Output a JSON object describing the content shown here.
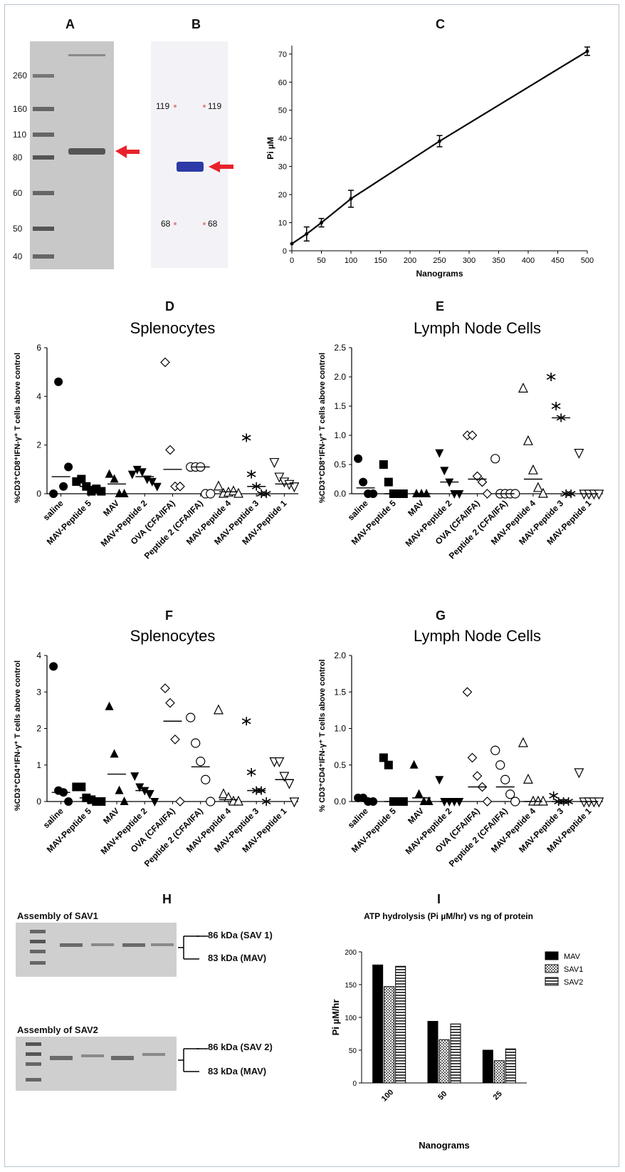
{
  "panels": {
    "A": {
      "label": "A",
      "markers": [
        "260",
        "160",
        "110",
        "80",
        "60",
        "50",
        "40"
      ]
    },
    "B": {
      "label": "B",
      "markers_left": [
        "119",
        "68"
      ],
      "markers_right": [
        "119",
        "68"
      ]
    },
    "C": {
      "label": "C"
    },
    "D": {
      "label": "D"
    },
    "E": {
      "label": "E"
    },
    "F": {
      "label": "F"
    },
    "G": {
      "label": "G"
    },
    "H": {
      "label": "H",
      "sav1_title": "Assembly of SAV1",
      "sav2_title": "Assembly of SAV2",
      "sav1_upper": "86 kDa (SAV 1)",
      "sav1_lower": "83 kDa (MAV)",
      "sav2_upper": "86 kDa (SAV 2)",
      "sav2_lower": "83 kDa (MAV)"
    },
    "I": {
      "label": "I"
    }
  },
  "chart_data": [
    {
      "id": "C",
      "type": "line",
      "xlabel": "Nanograms",
      "ylabel": "Pi µM",
      "xlim": [
        0,
        500
      ],
      "ylim": [
        0,
        73
      ],
      "xticks": [
        0,
        50,
        100,
        150,
        200,
        250,
        300,
        350,
        400,
        450,
        500
      ],
      "yticks": [
        0,
        10,
        20,
        30,
        40,
        50,
        60,
        70
      ],
      "x": [
        0,
        25,
        50,
        100,
        250,
        500
      ],
      "y": [
        2.5,
        6,
        10,
        18.5,
        39,
        71
      ],
      "err": [
        0,
        2.5,
        1.5,
        3,
        2,
        1.5
      ]
    },
    {
      "id": "D",
      "type": "scatter",
      "title": "Splenocytes",
      "ylabel": "%CD3⁺CD8⁺IFN-γ⁺ T cells above control",
      "ylim": [
        0,
        6
      ],
      "yticks": [
        "0",
        "2",
        "4",
        "6"
      ],
      "categories": [
        "saline",
        "MAV-Peptide 5",
        "MAV",
        "MAV+Peptide 2",
        "OVA (CFA/IFA)",
        "Peptide 2 (CFA/IFA)",
        "MAV-Peptide 4",
        "MAV-Peptide 3",
        "MAV-Peptide 1"
      ],
      "markers": [
        "circle",
        "square",
        "triangle",
        "triangle-down",
        "diamond-open",
        "circle-open",
        "triangle-open",
        "star",
        "triangle-down-open"
      ],
      "points": [
        [
          0,
          4.6,
          0.3,
          1.1
        ],
        [
          0.5,
          0.6,
          0.3,
          0.1,
          0.2,
          0.1
        ],
        [
          0.8,
          0.6,
          0,
          0
        ],
        [
          0.8,
          1.0,
          0.9,
          0.6,
          0.5,
          0.3
        ],
        [
          5.4,
          1.8,
          0.3,
          0.3
        ],
        [
          1.1,
          1.1,
          1.1,
          0,
          0
        ],
        [
          0.3,
          0,
          0.05,
          0.1,
          0
        ],
        [
          2.3,
          0.8,
          0.3,
          0,
          0
        ],
        [
          1.3,
          0.7,
          0.5,
          0.4,
          0.3
        ]
      ],
      "means": [
        0.7,
        0.3,
        0.4,
        0.7,
        1.0,
        1.1,
        0.08,
        0.3,
        0.4
      ]
    },
    {
      "id": "E",
      "type": "scatter",
      "title": "Lymph Node Cells",
      "ylabel": "%CD3⁺CD8⁺IFN-γ⁺ T cells above control",
      "ylim": [
        0,
        2.5
      ],
      "yticks": [
        "0.0",
        "0.5",
        "1.0",
        "1.5",
        "2.0",
        "2.5"
      ],
      "categories": [
        "saline",
        "MAV-Peptide 5",
        "MAV",
        "MAV+Peptide 2",
        "OVA (CFA/IFA)",
        "Peptide 2 (CFA/IFA)",
        "MAV-Peptide 4",
        "MAV-Peptide 3",
        "MAV-Peptide 1"
      ],
      "markers": [
        "circle",
        "square",
        "triangle",
        "triangle-down",
        "diamond-open",
        "circle-open",
        "triangle-open",
        "star",
        "triangle-down-open"
      ],
      "points": [
        [
          0.6,
          0.2,
          0,
          0
        ],
        [
          0.5,
          0.2,
          0,
          0,
          0
        ],
        [
          0,
          0,
          0
        ],
        [
          0.7,
          0.4,
          0.2,
          0,
          0
        ],
        [
          1.0,
          1.0,
          0.3,
          0.2,
          0
        ],
        [
          0.6,
          0,
          0,
          0,
          0
        ],
        [
          1.8,
          0.9,
          0.4,
          0.1,
          0
        ],
        [
          2.0,
          1.5,
          1.3,
          0,
          0
        ],
        [
          0.7,
          0,
          0,
          0,
          0
        ]
      ],
      "means": [
        0.1,
        0,
        0,
        0.2,
        0.25,
        0,
        0.25,
        1.3,
        0
      ]
    },
    {
      "id": "F",
      "type": "scatter",
      "title": "Splenocytes",
      "ylabel": "%CD3⁺CD4⁺IFN-γ⁺ T cells above control",
      "ylim": [
        0,
        4
      ],
      "yticks": [
        "0",
        "1",
        "2",
        "3",
        "4"
      ],
      "categories": [
        "saline",
        "MAV-Peptide 5",
        "MAV",
        "MAV+Peptide 2",
        "OVA (CFA/IFA)",
        "Peptide 2 (CFA/IFA)",
        "MAV-Peptide 4",
        "MAV-Peptide 3",
        "MAV-Peptide 1"
      ],
      "markers": [
        "circle",
        "square",
        "triangle",
        "triangle-down",
        "diamond-open",
        "circle-open",
        "triangle-open",
        "star",
        "triangle-down-open"
      ],
      "points": [
        [
          3.7,
          0.3,
          0.25,
          0
        ],
        [
          0.4,
          0.4,
          0.1,
          0.05,
          0,
          0
        ],
        [
          2.6,
          1.3,
          0.3,
          0
        ],
        [
          0.7,
          0.4,
          0.3,
          0.2,
          0
        ],
        [
          3.1,
          2.7,
          1.7,
          0
        ],
        [
          2.3,
          1.6,
          1.1,
          0.6,
          0
        ],
        [
          2.5,
          0.2,
          0.1,
          0,
          0
        ],
        [
          2.2,
          0.8,
          0.3,
          0.3,
          0
        ],
        [
          1.1,
          1.1,
          0.7,
          0.5,
          0
        ]
      ],
      "means": [
        0.25,
        0.1,
        0.75,
        0.3,
        2.2,
        0.95,
        0.05,
        0.3,
        0.6
      ]
    },
    {
      "id": "G",
      "type": "scatter",
      "title": "Lymph Node Cells",
      "ylabel": "% CD3⁺CD4⁺IFN-γ⁺ T cells above control",
      "ylim": [
        0,
        2.0
      ],
      "yticks": [
        "0.0",
        "0.5",
        "1.0",
        "1.5",
        "2.0"
      ],
      "categories": [
        "saline",
        "MAV-Peptide 5",
        "MAV",
        "MAV+Peptide 2",
        "OVA (CFA/IFA)",
        "Peptide 2 (CFA/IFA)",
        "MAV-Peptide 4",
        "MAV-Peptide 3",
        "MAV-Peptide 1"
      ],
      "markers": [
        "circle",
        "square",
        "triangle",
        "triangle-down",
        "diamond-open",
        "circle-open",
        "triangle-open",
        "star",
        "triangle-down-open"
      ],
      "points": [
        [
          0.05,
          0.05,
          0,
          0
        ],
        [
          0.6,
          0.5,
          0,
          0,
          0
        ],
        [
          0.5,
          0.1,
          0,
          0
        ],
        [
          0.3,
          0,
          0,
          0,
          0
        ],
        [
          1.5,
          0.6,
          0.35,
          0.2,
          0
        ],
        [
          0.7,
          0.5,
          0.3,
          0.1,
          0
        ],
        [
          0.8,
          0.3,
          0,
          0,
          0
        ],
        [
          0.08,
          0,
          0,
          0
        ],
        [
          0.4,
          0,
          0,
          0,
          0
        ]
      ],
      "means": [
        0.02,
        0,
        0.05,
        0,
        0.2,
        0.2,
        0,
        0,
        0
      ]
    },
    {
      "id": "I",
      "type": "bar",
      "title": "ATP hydrolysis (Pi µM/hr) vs ng of protein",
      "xlabel": "Nanograms",
      "ylabel": "Pi µM/hr",
      "ylim": [
        0,
        200
      ],
      "yticks": [
        0,
        50,
        100,
        150,
        200
      ],
      "categories": [
        "100",
        "50",
        "25"
      ],
      "series": [
        {
          "name": "MAV",
          "values": [
            180,
            94,
            50
          ],
          "fill": "#000000"
        },
        {
          "name": "SAV1",
          "values": [
            147,
            66,
            34
          ],
          "fill": "checker"
        },
        {
          "name": "SAV2",
          "values": [
            178,
            90,
            52
          ],
          "fill": "stripes"
        }
      ]
    }
  ]
}
